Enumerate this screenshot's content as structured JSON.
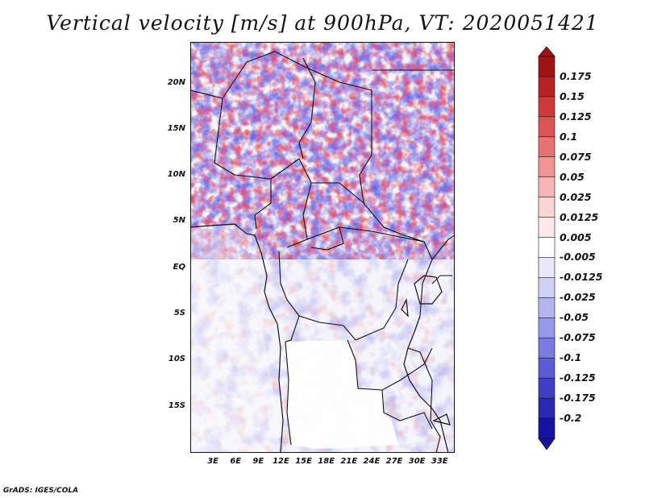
{
  "title": "Vertical velocity [m/s] at 900hPa, VT: 2020051421",
  "credit": "GrADS: IGES/COLA",
  "map": {
    "lat_labels": [
      "20N",
      "15N",
      "10N",
      "5N",
      "EQ",
      "5S",
      "10S",
      "15S"
    ],
    "lat_values": [
      20,
      15,
      10,
      5,
      0,
      -5,
      -10,
      -15
    ],
    "lon_labels": [
      "3E",
      "6E",
      "9E",
      "12E",
      "15E",
      "18E",
      "21E",
      "24E",
      "27E",
      "30E",
      "33E"
    ],
    "lon_values": [
      3,
      6,
      9,
      12,
      15,
      18,
      21,
      24,
      27,
      30,
      33
    ],
    "lat_range": [
      -20,
      24.5
    ],
    "lon_range": [
      0,
      35
    ]
  },
  "colorbar": {
    "labels": [
      "0.175",
      "0.15",
      "0.125",
      "0.1",
      "0.075",
      "0.05",
      "0.025",
      "0.0125",
      "0.005",
      "-0.005",
      "-0.0125",
      "-0.025",
      "-0.05",
      "-0.075",
      "-0.1",
      "-0.125",
      "-0.175",
      "-0.2"
    ],
    "colors": [
      "#a01414",
      "#b82222",
      "#cc3a3a",
      "#dc5555",
      "#e67272",
      "#f09494",
      "#f7b6b6",
      "#fbd4d4",
      "#fde9e9",
      "#ffffff",
      "#e8e8fb",
      "#d0d0f6",
      "#b4b4f0",
      "#9898ea",
      "#7a7ae0",
      "#5c5cd6",
      "#3f3fc6",
      "#2828b2",
      "#1414a0"
    ]
  }
}
